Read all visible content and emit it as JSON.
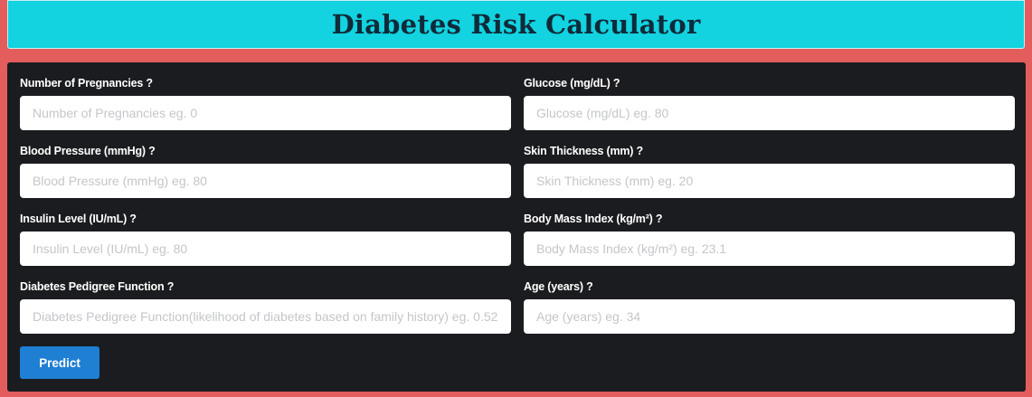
{
  "header": {
    "title": "Diabetes Risk Calculator"
  },
  "form": {
    "fields": [
      {
        "label": "Number of Pregnancies ?",
        "placeholder": "Number of Pregnancies eg. 0",
        "value": ""
      },
      {
        "label": "Glucose (mg/dL) ?",
        "placeholder": "Glucose (mg/dL) eg. 80",
        "value": ""
      },
      {
        "label": "Blood Pressure (mmHg) ?",
        "placeholder": "Blood Pressure (mmHg) eg. 80",
        "value": ""
      },
      {
        "label": "Skin Thickness (mm) ?",
        "placeholder": "Skin Thickness (mm) eg. 20",
        "value": ""
      },
      {
        "label": "Insulin Level (IU/mL) ?",
        "placeholder": "Insulin Level (IU/mL) eg. 80",
        "value": ""
      },
      {
        "label": "Body Mass Index (kg/m²) ?",
        "placeholder": "Body Mass Index (kg/m²) eg. 23.1",
        "value": ""
      },
      {
        "label": "Diabetes Pedigree Function ?",
        "placeholder": "Diabetes Pedigree Function(likelihood of diabetes based on family history) eg. 0.52",
        "value": ""
      },
      {
        "label": "Age (years) ?",
        "placeholder": "Age (years) eg. 34",
        "value": ""
      }
    ],
    "predict_label": "Predict"
  },
  "colors": {
    "page_background": "#e35d5d",
    "header_background": "#12d3df",
    "panel_background": "#1b1c1f",
    "button_background": "#1f7fd3"
  }
}
